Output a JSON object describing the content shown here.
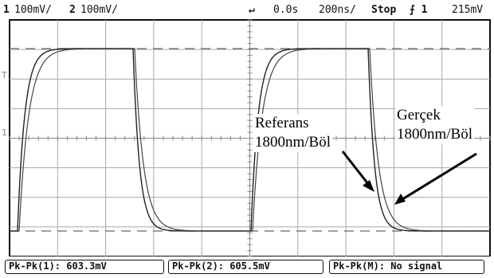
{
  "status_bar": {
    "ch1_label": "1",
    "ch1_scale": "100mV/",
    "ch2_label": "2",
    "ch2_scale": "100mV/",
    "trigger_symbol": "↵",
    "time_delay": "0.0s",
    "time_scale": "200ns/",
    "run_state": "Stop",
    "trigger_info": "⨍ 1",
    "trigger_level": "215mV"
  },
  "measurements": [
    {
      "label": "Pk-Pk(1): 603.3mV"
    },
    {
      "label": "Pk-Pk(2): 605.5mV"
    },
    {
      "label": "Pk-Pk(M): No signal"
    }
  ],
  "annotations": {
    "reference_line1": "Referans",
    "reference_line2": "1800nm/Böl",
    "actual_line1": "Gerçek",
    "actual_line2": "1800nm/Böl"
  },
  "markers": {
    "trigger_marker": "T",
    "ground_marker": "1"
  },
  "colors": {
    "trace": "#222222",
    "grid": "#9a9a9a",
    "frame": "#111111",
    "background": "#ffffff"
  }
}
